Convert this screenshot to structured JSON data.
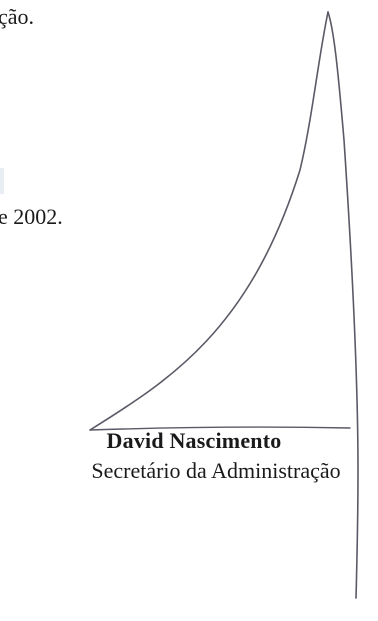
{
  "document": {
    "top_fragment": "ção.",
    "date_fragment": "e 2002."
  },
  "signature_block": {
    "name": "David Nascimento",
    "role": "Secretário da Administração"
  }
}
